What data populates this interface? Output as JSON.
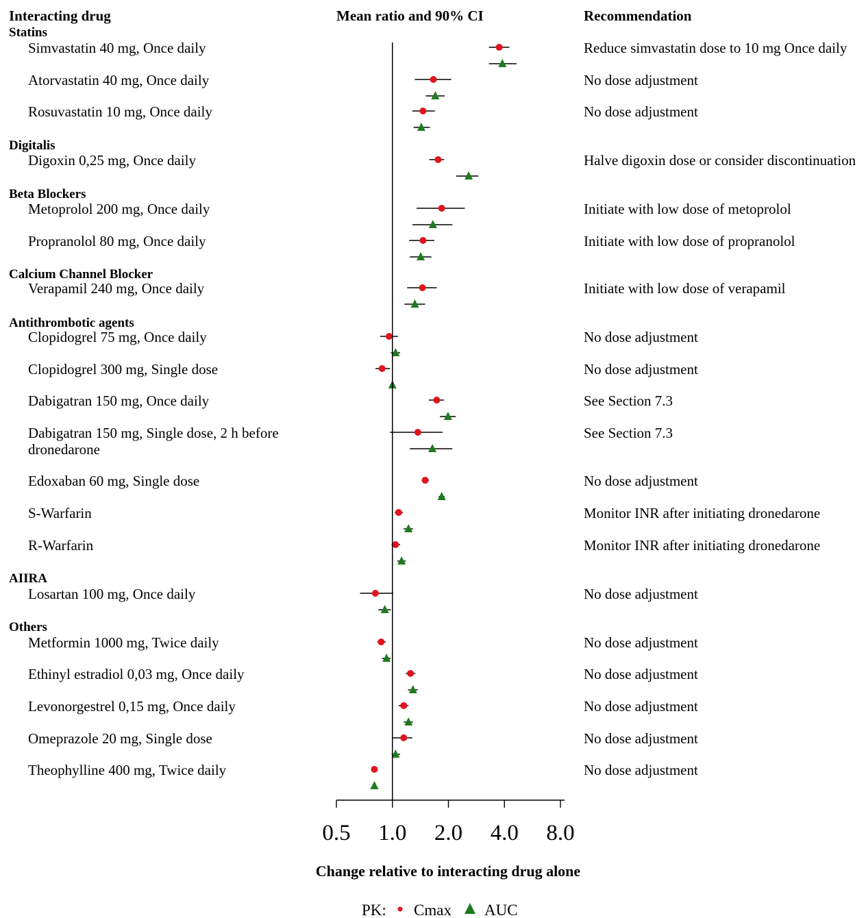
{
  "headers": {
    "drug": "Interacting drug",
    "ci": "Mean ratio and 90% CI",
    "recommendation": "Recommendation"
  },
  "legend": {
    "prefix": "PK:",
    "cmax_label": "Cmax",
    "auc_label": "AUC",
    "cmax_color": "#e0141e",
    "auc_color": "#1f7a1f"
  },
  "chart_data": {
    "type": "forest",
    "xlabel": "Change relative to interacting drug alone",
    "x_scale": "log2",
    "xlim": [
      0.5,
      8.0
    ],
    "ticks": [
      {
        "value": 0.5,
        "label": "0.5"
      },
      {
        "value": 1.0,
        "label": "1.0"
      },
      {
        "value": 2.0,
        "label": "2.0"
      },
      {
        "value": 4.0,
        "label": "4.0"
      },
      {
        "value": 8.0,
        "label": "8.0"
      }
    ],
    "reference_line": 1.0,
    "series": [
      {
        "name": "Cmax",
        "marker": "circle",
        "color": "#e0141e"
      },
      {
        "name": "AUC",
        "marker": "triangle",
        "color": "#1f7a1f"
      }
    ],
    "groups": [
      {
        "name": "Statins",
        "drugs": [
          {
            "name": "Simvastatin 40 mg, Once daily",
            "recommendation": "Reduce simvastatin dose to 10 mg Once daily",
            "cmax": {
              "est": 3.75,
              "lo": 3.3,
              "hi": 4.25
            },
            "auc": {
              "est": 3.9,
              "lo": 3.3,
              "hi": 4.65
            }
          },
          {
            "name": "Atorvastatin 40 mg, Once daily",
            "recommendation": "No dose adjustment",
            "cmax": {
              "est": 1.66,
              "lo": 1.32,
              "hi": 2.07
            },
            "auc": {
              "est": 1.7,
              "lo": 1.51,
              "hi": 1.91
            }
          },
          {
            "name": "Rosuvastatin 10 mg, Once daily",
            "recommendation": "No dose adjustment",
            "cmax": {
              "est": 1.46,
              "lo": 1.28,
              "hi": 1.69
            },
            "auc": {
              "est": 1.43,
              "lo": 1.3,
              "hi": 1.59
            }
          }
        ]
      },
      {
        "name": "Digitalis",
        "drugs": [
          {
            "name": "Digoxin 0,25 mg, Once daily",
            "recommendation": "Halve digoxin dose or consider discontinuation",
            "cmax": {
              "est": 1.76,
              "lo": 1.58,
              "hi": 1.9
            },
            "auc": {
              "est": 2.57,
              "lo": 2.2,
              "hi": 2.9
            }
          }
        ]
      },
      {
        "name": "Beta Blockers",
        "drugs": [
          {
            "name": "Metoprolol 200 mg, Once daily",
            "recommendation": "Initiate with low dose of metoprolol",
            "cmax": {
              "est": 1.84,
              "lo": 1.35,
              "hi": 2.45
            },
            "auc": {
              "est": 1.65,
              "lo": 1.28,
              "hi": 2.1
            }
          },
          {
            "name": "Propranolol 80 mg, Once daily",
            "recommendation": "Initiate with low dose of propranolol",
            "cmax": {
              "est": 1.46,
              "lo": 1.23,
              "hi": 1.68
            },
            "auc": {
              "est": 1.42,
              "lo": 1.24,
              "hi": 1.62
            }
          }
        ]
      },
      {
        "name": "Calcium Channel Blocker",
        "drugs": [
          {
            "name": "Verapamil 240 mg, Once daily",
            "recommendation": "Initiate with low dose of verapamil",
            "cmax": {
              "est": 1.45,
              "lo": 1.2,
              "hi": 1.73
            },
            "auc": {
              "est": 1.32,
              "lo": 1.16,
              "hi": 1.5
            }
          }
        ]
      },
      {
        "name": "Antithrombotic agents",
        "drugs": [
          {
            "name": "Clopidogrel 75 mg, Once daily",
            "recommendation": "No dose adjustment",
            "cmax": {
              "est": 0.96,
              "lo": 0.86,
              "hi": 1.07
            },
            "auc": {
              "est": 1.04,
              "lo": 0.98,
              "hi": 1.1
            }
          },
          {
            "name": "Clopidogrel 300 mg, Single dose",
            "recommendation": "No dose adjustment",
            "cmax": {
              "est": 0.88,
              "lo": 0.81,
              "hi": 0.97
            },
            "auc": {
              "est": 1.0,
              "lo": 0.97,
              "hi": 1.03
            }
          },
          {
            "name": "Dabigatran 150 mg, Once daily",
            "recommendation": "See Section 7.3",
            "cmax": {
              "est": 1.73,
              "lo": 1.57,
              "hi": 1.89
            },
            "auc": {
              "est": 1.99,
              "lo": 1.8,
              "hi": 2.19
            }
          },
          {
            "name": "Dabigatran 150 mg, Single dose, 2 h before dronedarone",
            "recommendation": "See Section 7.3",
            "cmax": {
              "est": 1.37,
              "lo": 0.97,
              "hi": 1.86
            },
            "auc": {
              "est": 1.64,
              "lo": 1.24,
              "hi": 2.1
            }
          },
          {
            "name": "Edoxaban 60 mg, Single dose",
            "recommendation": "No dose adjustment",
            "cmax": {
              "est": 1.5,
              "lo": 1.44,
              "hi": 1.57
            },
            "auc": {
              "est": 1.84,
              "lo": 1.77,
              "hi": 1.91
            }
          },
          {
            "name": "S-Warfarin",
            "recommendation": "Monitor INR after initiating dronedarone",
            "cmax": {
              "est": 1.08,
              "lo": 1.03,
              "hi": 1.14
            },
            "auc": {
              "est": 1.22,
              "lo": 1.15,
              "hi": 1.29
            }
          },
          {
            "name": "R-Warfarin",
            "recommendation": "Monitor INR after initiating dronedarone",
            "cmax": {
              "est": 1.04,
              "lo": 0.99,
              "hi": 1.1
            },
            "auc": {
              "est": 1.12,
              "lo": 1.06,
              "hi": 1.18
            }
          }
        ]
      },
      {
        "name": "AIIRA",
        "drugs": [
          {
            "name": "Losartan 100 mg, Once daily",
            "recommendation": "No dose adjustment",
            "cmax": {
              "est": 0.81,
              "lo": 0.67,
              "hi": 1.01
            },
            "auc": {
              "est": 0.91,
              "lo": 0.84,
              "hi": 0.98
            }
          }
        ]
      },
      {
        "name": "Others",
        "drugs": [
          {
            "name": "Metformin 1000 mg, Twice daily",
            "recommendation": "No dose adjustment",
            "cmax": {
              "est": 0.87,
              "lo": 0.83,
              "hi": 0.92
            },
            "auc": {
              "est": 0.93,
              "lo": 0.88,
              "hi": 0.98
            }
          },
          {
            "name": "Ethinyl estradiol 0,03 mg, Once daily",
            "recommendation": "No dose adjustment",
            "cmax": {
              "est": 1.25,
              "lo": 1.18,
              "hi": 1.33
            },
            "auc": {
              "est": 1.29,
              "lo": 1.21,
              "hi": 1.37
            }
          },
          {
            "name": "Levonorgestrel 0,15 mg, Once daily",
            "recommendation": "No dose adjustment",
            "cmax": {
              "est": 1.15,
              "lo": 1.08,
              "hi": 1.22
            },
            "auc": {
              "est": 1.22,
              "lo": 1.15,
              "hi": 1.29
            }
          },
          {
            "name": "Omeprazole 20 mg, Single dose",
            "recommendation": "No dose adjustment",
            "cmax": {
              "est": 1.15,
              "lo": 1.0,
              "hi": 1.28
            },
            "auc": {
              "est": 1.04,
              "lo": 0.99,
              "hi": 1.1
            }
          },
          {
            "name": "Theophylline 400 mg, Twice daily",
            "recommendation": "No dose adjustment",
            "cmax": {
              "est": 0.8,
              "lo": 0.78,
              "hi": 0.82
            },
            "auc": {
              "est": 0.8,
              "lo": 0.78,
              "hi": 0.82
            }
          }
        ]
      }
    ]
  }
}
